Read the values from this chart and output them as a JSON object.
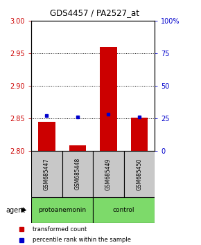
{
  "title": "GDS4457 / PA2527_at",
  "samples": [
    "GSM685447",
    "GSM685448",
    "GSM685449",
    "GSM685450"
  ],
  "transformed_counts": [
    2.844,
    2.808,
    2.96,
    2.851
  ],
  "percentile_ranks": [
    27,
    26,
    28,
    26
  ],
  "ylim_left": [
    2.8,
    3.0
  ],
  "ylim_right": [
    0,
    100
  ],
  "yticks_left": [
    2.8,
    2.85,
    2.9,
    2.95,
    3.0
  ],
  "yticks_right": [
    0,
    25,
    50,
    75,
    100
  ],
  "bar_color": "#cc0000",
  "dot_color": "#0000cc",
  "bar_base": 2.8,
  "grid_color": "#000000",
  "left_tick_color": "#cc0000",
  "right_tick_color": "#0000cc",
  "agent_label": "agent",
  "legend_bar_label": "transformed count",
  "legend_dot_label": "percentile rank within the sample",
  "bg_color": "#ffffff",
  "plot_bg_color": "#ffffff",
  "sample_box_color": "#c8c8c8",
  "protoanemonin_color": "#7dda6a",
  "control_color": "#7dda6a",
  "bar_width": 0.55
}
